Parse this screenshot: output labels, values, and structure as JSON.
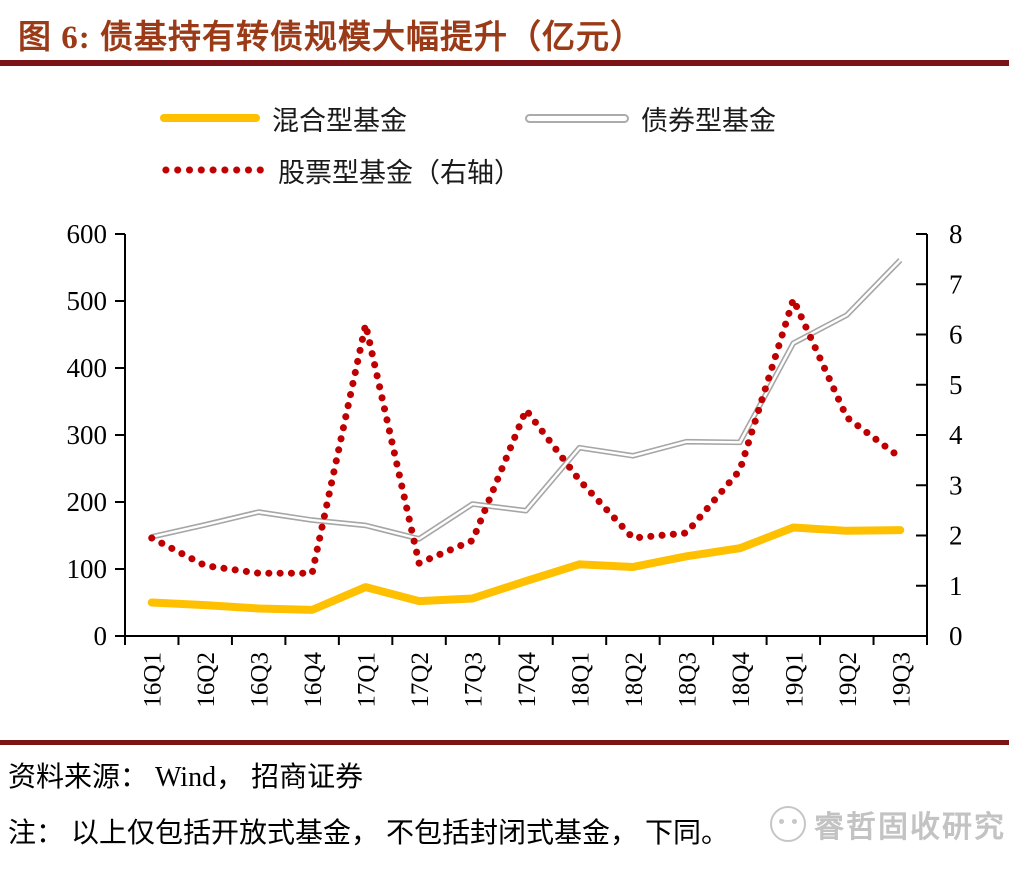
{
  "title": "图 6: 债基持有转债规模大幅提升（亿元）",
  "legend": [
    {
      "label": "混合型基金",
      "color": "#FFC000",
      "style": "solid-thick"
    },
    {
      "label": "债券型基金",
      "color": "#ABABAB",
      "style": "double-line"
    },
    {
      "label": "股票型基金（右轴）",
      "color": "#C00000",
      "style": "dotted"
    }
  ],
  "chart_data": {
    "type": "line",
    "title": "债基持有转债规模大幅提升（亿元）",
    "categories": [
      "16Q1",
      "16Q2",
      "16Q3",
      "16Q4",
      "17Q1",
      "17Q2",
      "17Q3",
      "17Q4",
      "18Q1",
      "18Q2",
      "18Q3",
      "18Q4",
      "19Q1",
      "19Q2",
      "19Q3"
    ],
    "series": [
      {
        "name": "混合型基金",
        "axis": "left",
        "color": "#FFC000",
        "style": "solid-thick",
        "values": [
          50,
          46,
          41,
          39,
          73,
          52,
          56,
          82,
          107,
          103,
          119,
          131,
          162,
          157,
          158
        ]
      },
      {
        "name": "债券型基金",
        "axis": "left",
        "color": "#A6A6A6",
        "style": "double-line",
        "values": [
          148,
          166,
          185,
          173,
          165,
          145,
          197,
          187,
          281,
          269,
          290,
          289,
          437,
          479,
          561
        ]
      },
      {
        "name": "股票型基金（右轴）",
        "axis": "right",
        "color": "#C00000",
        "style": "dotted",
        "values": [
          1.95,
          1.4,
          1.25,
          1.25,
          6.2,
          1.45,
          1.9,
          4.5,
          3.1,
          1.95,
          2.05,
          3.3,
          6.7,
          4.35,
          3.55
        ]
      }
    ],
    "left_axis": {
      "min": 0,
      "max": 600,
      "step": 100
    },
    "right_axis": {
      "min": 0,
      "max": 8,
      "step": 1
    },
    "grid": false,
    "legend_position": "top"
  },
  "footer": {
    "source": "资料来源： Wind， 招商证券",
    "note": "注： 以上仅包括开放式基金， 不包括封闭式基金， 下同。"
  },
  "watermark": {
    "text": "睿哲固收研究"
  },
  "colors": {
    "title": "#9A3A17",
    "rule": "#7A1416",
    "axis": "#000000",
    "background": "#FFFFFF"
  }
}
